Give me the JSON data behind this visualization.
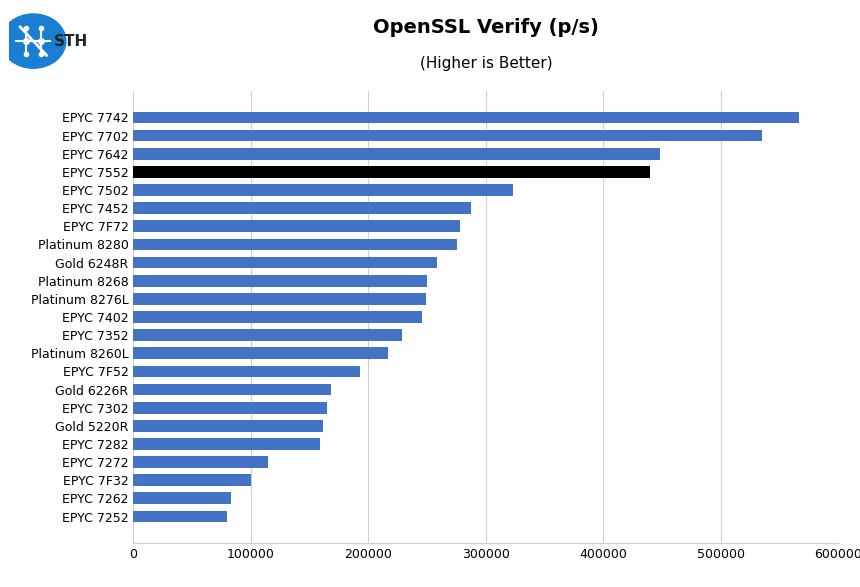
{
  "title": "OpenSSL Verify (p/s)",
  "subtitle": "(Higher is Better)",
  "categories": [
    "EPYC 7742",
    "EPYC 7702",
    "EPYC 7642",
    "EPYC 7552",
    "EPYC 7502",
    "EPYC 7452",
    "EPYC 7F72",
    "Platinum 8280",
    "Gold 6248R",
    "Platinum 8268",
    "Platinum 8276L",
    "EPYC 7402",
    "EPYC 7352",
    "Platinum 8260L",
    "EPYC 7F52",
    "Gold 6226R",
    "EPYC 7302",
    "Gold 5220R",
    "EPYC 7282",
    "EPYC 7272",
    "EPYC 7F32",
    "EPYC 7262",
    "EPYC 7252"
  ],
  "values": [
    566000,
    535000,
    448000,
    440000,
    323000,
    287000,
    278000,
    275000,
    258000,
    250000,
    249000,
    246000,
    229000,
    217000,
    193000,
    168000,
    165000,
    161000,
    159000,
    115000,
    100000,
    83000,
    80000
  ],
  "bar_colors": [
    "#4472c4",
    "#4472c4",
    "#4472c4",
    "#000000",
    "#4472c4",
    "#4472c4",
    "#4472c4",
    "#4472c4",
    "#4472c4",
    "#4472c4",
    "#4472c4",
    "#4472c4",
    "#4472c4",
    "#4472c4",
    "#4472c4",
    "#4472c4",
    "#4472c4",
    "#4472c4",
    "#4472c4",
    "#4472c4",
    "#4472c4",
    "#4472c4",
    "#4472c4"
  ],
  "xlim": [
    0,
    600000
  ],
  "xticks": [
    0,
    100000,
    200000,
    300000,
    400000,
    500000,
    600000
  ],
  "xtick_labels": [
    "0",
    "100000",
    "200000",
    "300000",
    "400000",
    "500000",
    "600000"
  ],
  "background_color": "#ffffff",
  "grid_color": "#d0d0d0",
  "title_fontsize": 14,
  "subtitle_fontsize": 11,
  "tick_fontsize": 9,
  "bar_height": 0.65,
  "logo_circle_color": "#1a73d4",
  "logo_text_color": "#1a73d4",
  "logo_sth_color": "#222222"
}
